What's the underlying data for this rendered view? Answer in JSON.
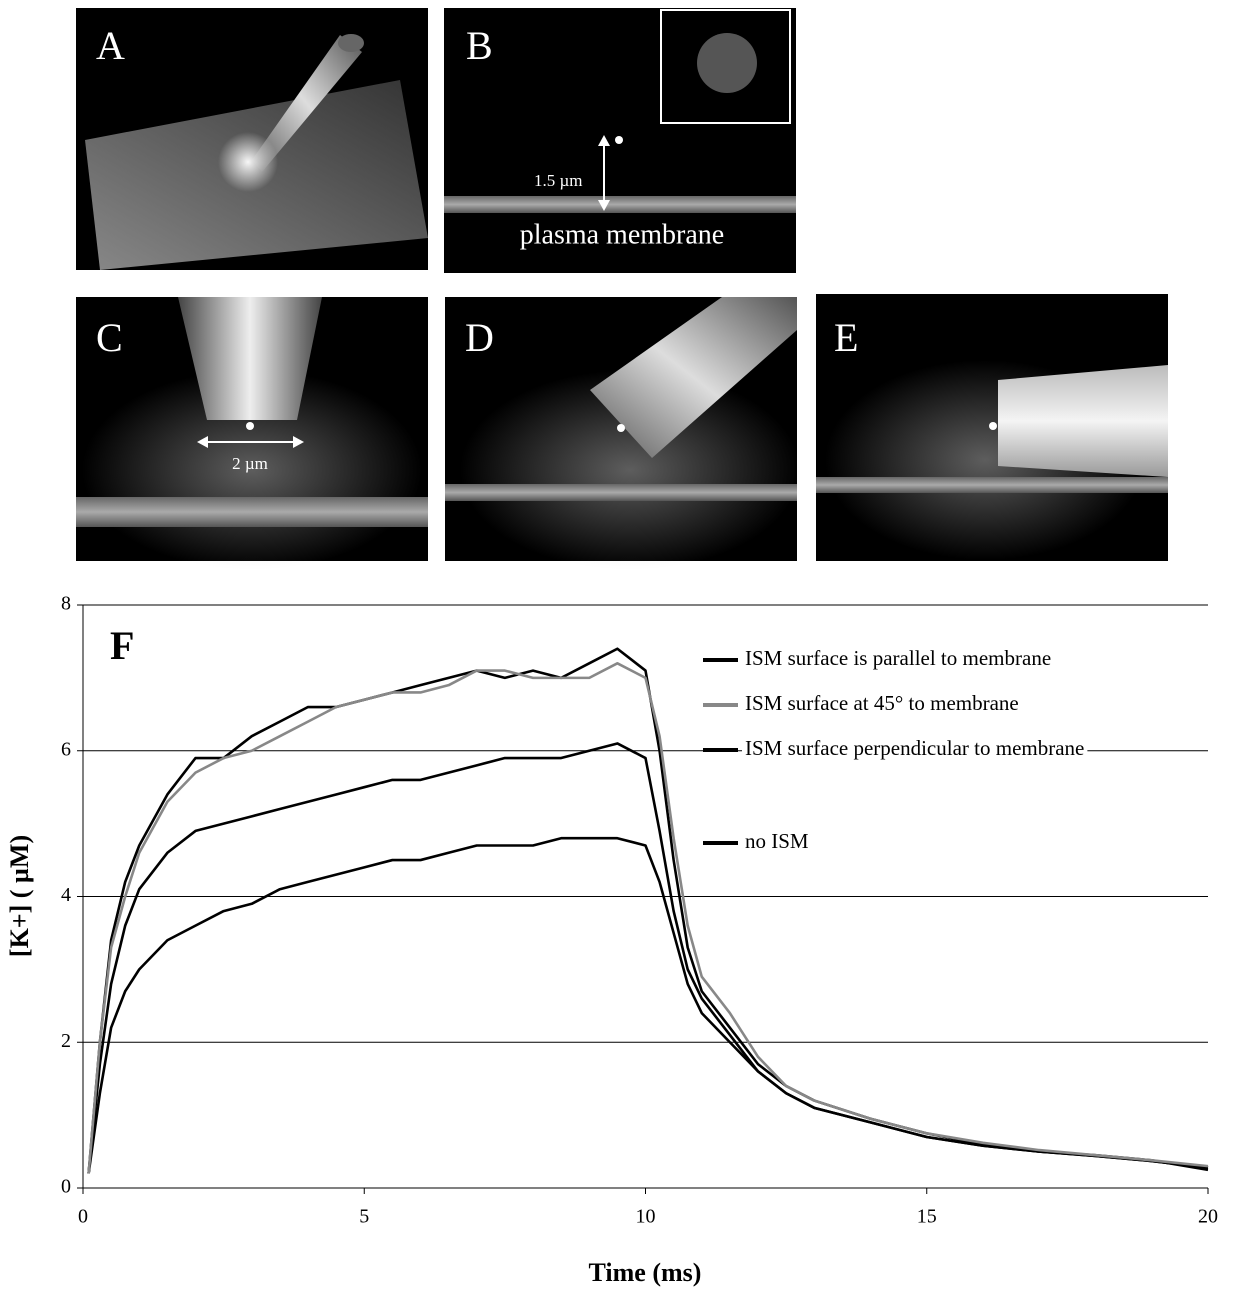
{
  "panels": [
    {
      "label": "A"
    },
    {
      "label": "B",
      "annotations": [
        "1.5 µm",
        "plasma membrane"
      ]
    },
    {
      "label": "C",
      "annotations": [
        "2 µm"
      ]
    },
    {
      "label": "D"
    },
    {
      "label": "E"
    }
  ],
  "chart_data": {
    "type": "line",
    "panel_label": "F",
    "x_label": "Time (ms)",
    "y_label": "[K+] ( µM)",
    "x": [
      0.1,
      0.3,
      0.5,
      0.75,
      1,
      1.5,
      2,
      2.5,
      3,
      3.5,
      4,
      4.5,
      5,
      5.5,
      6,
      6.5,
      7,
      7.5,
      8,
      8.5,
      9,
      9.5,
      10,
      10.25,
      10.5,
      10.75,
      11,
      11.5,
      12,
      12.5,
      13,
      14,
      15,
      16,
      17,
      18,
      19,
      20
    ],
    "series": [
      {
        "name": "ISM surface is parallel to membrane",
        "color": "#000000",
        "values": [
          0.2,
          2.0,
          3.4,
          4.2,
          4.7,
          5.4,
          5.9,
          5.9,
          6.2,
          6.4,
          6.6,
          6.6,
          6.7,
          6.8,
          6.9,
          7.0,
          7.1,
          7.0,
          7.1,
          7.0,
          7.2,
          7.4,
          7.1,
          6.0,
          4.5,
          3.3,
          2.7,
          2.2,
          1.7,
          1.4,
          1.2,
          0.95,
          0.75,
          0.6,
          0.5,
          0.45,
          0.38,
          0.25
        ]
      },
      {
        "name": "ISM surface at 45° to membrane",
        "color": "#888888",
        "values": [
          0.2,
          2.0,
          3.3,
          4.0,
          4.6,
          5.3,
          5.7,
          5.9,
          6.0,
          6.2,
          6.4,
          6.6,
          6.7,
          6.8,
          6.8,
          6.9,
          7.1,
          7.1,
          7.0,
          7.0,
          7.0,
          7.2,
          7.0,
          6.2,
          4.8,
          3.6,
          2.9,
          2.4,
          1.8,
          1.4,
          1.2,
          0.95,
          0.75,
          0.62,
          0.52,
          0.45,
          0.38,
          0.3
        ]
      },
      {
        "name": "ISM surface perpendicular to membrane",
        "color": "#000000",
        "values": [
          0.2,
          1.7,
          2.8,
          3.6,
          4.1,
          4.6,
          4.9,
          5.0,
          5.1,
          5.2,
          5.3,
          5.4,
          5.5,
          5.6,
          5.6,
          5.7,
          5.8,
          5.9,
          5.9,
          5.9,
          6.0,
          6.1,
          5.9,
          4.9,
          3.8,
          3.0,
          2.6,
          2.1,
          1.6,
          1.3,
          1.1,
          0.9,
          0.7,
          0.58,
          0.5,
          0.44,
          0.37,
          0.28
        ]
      },
      {
        "name": "no ISM",
        "color": "#000000",
        "values": [
          0.2,
          1.3,
          2.2,
          2.7,
          3.0,
          3.4,
          3.6,
          3.8,
          3.9,
          4.1,
          4.2,
          4.3,
          4.4,
          4.5,
          4.5,
          4.6,
          4.7,
          4.7,
          4.7,
          4.8,
          4.8,
          4.8,
          4.7,
          4.2,
          3.5,
          2.8,
          2.4,
          2.0,
          1.6,
          1.3,
          1.1,
          0.9,
          0.7,
          0.58,
          0.5,
          0.44,
          0.37,
          0.28
        ]
      }
    ],
    "xlim": [
      0,
      20
    ],
    "xticks": [
      0,
      5,
      10,
      15,
      20
    ],
    "ylim": [
      0,
      8
    ],
    "yticks": [
      0,
      2,
      4,
      6,
      8
    ],
    "grid": true
  }
}
